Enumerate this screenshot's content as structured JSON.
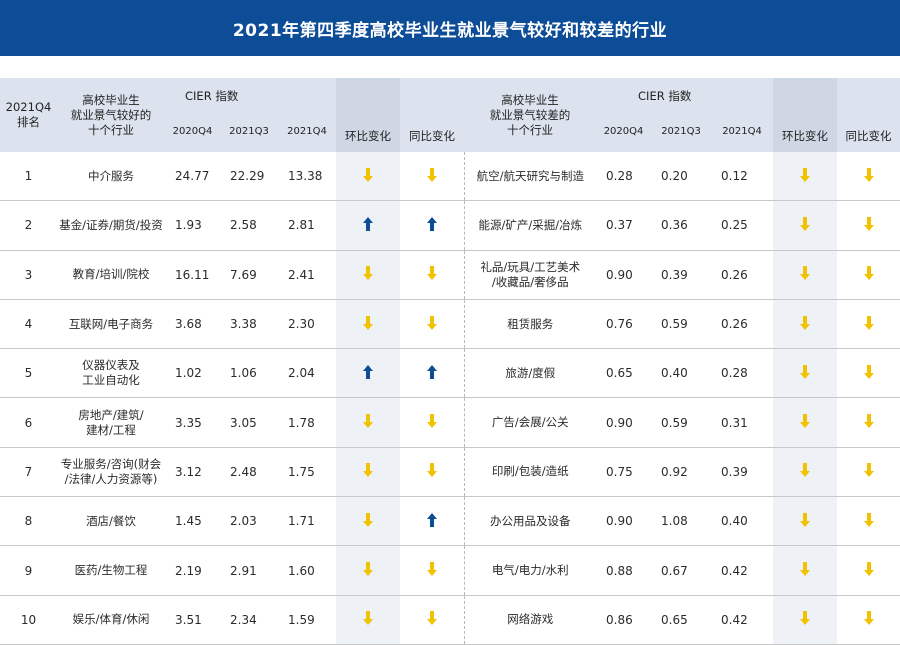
{
  "title": "2021年第四季度高校毕业生就业景气较好和较差的行业",
  "header": {
    "rank_line1": "2021Q4",
    "rank_line2": "排名",
    "good_industry": [
      "高校毕业生",
      "就业景气较好的",
      "十个行业"
    ],
    "bad_industry": [
      "高校毕业生",
      "就业景气较差的",
      "十个行业"
    ],
    "cier_index": "CIER  指数",
    "col_2020q4": "2020Q4",
    "col_2021q3": "2021Q3",
    "col_2021q4": "2021Q4",
    "qoq_change": "环比变化",
    "yoy_change": "同比变化"
  },
  "colors": {
    "title_bg": "#0d4c97",
    "arrow_down": "#f2c200",
    "arrow_up": "#0d4c97",
    "header_bg": "#dce3ee"
  },
  "chart_data": {
    "type": "table",
    "title": "2021年第四季度高校毕业生就业景气较好和较差的行业",
    "columns": [
      "2021Q4排名",
      "高校毕业生就业景气较好的十个行业",
      "2020Q4",
      "2021Q3",
      "2021Q4",
      "环比变化",
      "同比变化",
      "高校毕业生就业景气较差的十个行业",
      "2020Q4",
      "2021Q3",
      "2021Q4",
      "环比变化",
      "同比变化"
    ],
    "rows": [
      {
        "rank": "1",
        "good_lines": [
          "中介服务"
        ],
        "good": [
          "24.77",
          "22.29",
          "13.38"
        ],
        "good_qoq": "down",
        "good_yoy": "down",
        "bad_lines": [
          "航空/航天研究与制造"
        ],
        "bad": [
          "0.28",
          "0.20",
          "0.12"
        ],
        "bad_qoq": "down",
        "bad_yoy": "down"
      },
      {
        "rank": "2",
        "good_lines": [
          "基金/证券/期货/投资"
        ],
        "good": [
          "1.93",
          "2.58",
          "2.81"
        ],
        "good_qoq": "up",
        "good_yoy": "up",
        "bad_lines": [
          "能源/矿产/采掘/冶炼"
        ],
        "bad": [
          "0.37",
          "0.36",
          "0.25"
        ],
        "bad_qoq": "down",
        "bad_yoy": "down"
      },
      {
        "rank": "3",
        "good_lines": [
          "教育/培训/院校"
        ],
        "good": [
          "16.11",
          "7.69",
          "2.41"
        ],
        "good_qoq": "down",
        "good_yoy": "down",
        "bad_lines": [
          "礼品/玩具/工艺美术",
          "/收藏品/奢侈品"
        ],
        "bad": [
          "0.90",
          "0.39",
          "0.26"
        ],
        "bad_qoq": "down",
        "bad_yoy": "down"
      },
      {
        "rank": "4",
        "good_lines": [
          "互联网/电子商务"
        ],
        "good": [
          "3.68",
          "3.38",
          "2.30"
        ],
        "good_qoq": "down",
        "good_yoy": "down",
        "bad_lines": [
          "租赁服务"
        ],
        "bad": [
          "0.76",
          "0.59",
          "0.26"
        ],
        "bad_qoq": "down",
        "bad_yoy": "down"
      },
      {
        "rank": "5",
        "good_lines": [
          "仪器仪表及",
          "工业自动化"
        ],
        "good": [
          "1.02",
          "1.06",
          "2.04"
        ],
        "good_qoq": "up",
        "good_yoy": "up",
        "bad_lines": [
          "旅游/度假"
        ],
        "bad": [
          "0.65",
          "0.40",
          "0.28"
        ],
        "bad_qoq": "down",
        "bad_yoy": "down"
      },
      {
        "rank": "6",
        "good_lines": [
          "房地产/建筑/",
          "建材/工程"
        ],
        "good": [
          "3.35",
          "3.05",
          "1.78"
        ],
        "good_qoq": "down",
        "good_yoy": "down",
        "bad_lines": [
          "广告/会展/公关"
        ],
        "bad": [
          "0.90",
          "0.59",
          "0.31"
        ],
        "bad_qoq": "down",
        "bad_yoy": "down"
      },
      {
        "rank": "7",
        "good_lines": [
          "专业服务/咨询(财会",
          "/法律/人力资源等)"
        ],
        "good": [
          "3.12",
          "2.48",
          "1.75"
        ],
        "good_qoq": "down",
        "good_yoy": "down",
        "bad_lines": [
          "印刷/包装/造纸"
        ],
        "bad": [
          "0.75",
          "0.92",
          "0.39"
        ],
        "bad_qoq": "down",
        "bad_yoy": "down"
      },
      {
        "rank": "8",
        "good_lines": [
          "酒店/餐饮"
        ],
        "good": [
          "1.45",
          "2.03",
          "1.71"
        ],
        "good_qoq": "down",
        "good_yoy": "up",
        "bad_lines": [
          "办公用品及设备"
        ],
        "bad": [
          "0.90",
          "1.08",
          "0.40"
        ],
        "bad_qoq": "down",
        "bad_yoy": "down"
      },
      {
        "rank": "9",
        "good_lines": [
          "医药/生物工程"
        ],
        "good": [
          "2.19",
          "2.91",
          "1.60"
        ],
        "good_qoq": "down",
        "good_yoy": "down",
        "bad_lines": [
          "电气/电力/水利"
        ],
        "bad": [
          "0.88",
          "0.67",
          "0.42"
        ],
        "bad_qoq": "down",
        "bad_yoy": "down"
      },
      {
        "rank": "10",
        "good_lines": [
          "娱乐/体育/休闲"
        ],
        "good": [
          "3.51",
          "2.34",
          "1.59"
        ],
        "good_qoq": "down",
        "good_yoy": "down",
        "bad_lines": [
          "网络游戏"
        ],
        "bad": [
          "0.86",
          "0.65",
          "0.42"
        ],
        "bad_qoq": "down",
        "bad_yoy": "down"
      }
    ]
  }
}
